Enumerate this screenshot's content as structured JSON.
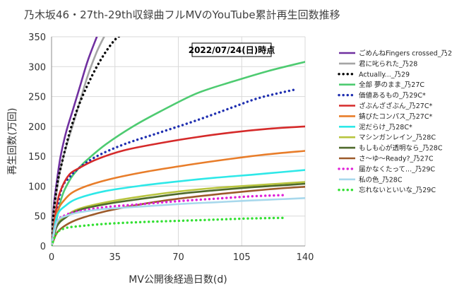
{
  "chart_data": {
    "type": "line",
    "title": "乃木坂46・27th-29th収録曲フルMVのYouTube累計再生回数推移",
    "annotation": "2022/07/24(日)時点",
    "xlabel": "MV公開後経過日数(d)",
    "ylabel": "再生回数(万回)",
    "xlim": [
      0,
      140
    ],
    "ylim": [
      0,
      350
    ],
    "xticks": [
      0,
      35,
      70,
      105,
      140
    ],
    "yticks": [
      0,
      50,
      100,
      150,
      200,
      250,
      300,
      350
    ],
    "grid": true,
    "legend_position": "right",
    "series": [
      {
        "name": "ごめんねFingers crossed_乃27",
        "color": "#7030a0",
        "dash": "solid",
        "points": [
          [
            0,
            0
          ],
          [
            1,
            60
          ],
          [
            3,
            110
          ],
          [
            5,
            150
          ],
          [
            8,
            190
          ],
          [
            12,
            230
          ],
          [
            16,
            270
          ],
          [
            20,
            310
          ],
          [
            25,
            350
          ]
        ]
      },
      {
        "name": "君に叱られた_乃28",
        "color": "#a5a5a5",
        "dash": "solid",
        "points": [
          [
            0,
            0
          ],
          [
            1,
            50
          ],
          [
            3,
            95
          ],
          [
            5,
            130
          ],
          [
            8,
            165
          ],
          [
            12,
            205
          ],
          [
            16,
            245
          ],
          [
            20,
            285
          ],
          [
            25,
            325
          ],
          [
            29,
            350
          ]
        ]
      },
      {
        "name": "Actually..._乃29",
        "color": "#000000",
        "dash": "dot",
        "points": [
          [
            0,
            0
          ],
          [
            1,
            50
          ],
          [
            3,
            100
          ],
          [
            5,
            130
          ],
          [
            10,
            190
          ],
          [
            15,
            235
          ],
          [
            20,
            270
          ],
          [
            25,
            300
          ],
          [
            30,
            325
          ],
          [
            35,
            345
          ],
          [
            38,
            352
          ]
        ]
      },
      {
        "name": "全部 夢のまま_乃27C",
        "color": "#4ecb71",
        "dash": "solid",
        "points": [
          [
            0,
            0
          ],
          [
            5,
            75
          ],
          [
            10,
            110
          ],
          [
            15,
            130
          ],
          [
            20,
            145
          ],
          [
            30,
            170
          ],
          [
            45,
            200
          ],
          [
            60,
            225
          ],
          [
            80,
            255
          ],
          [
            100,
            275
          ],
          [
            120,
            293
          ],
          [
            140,
            308
          ]
        ]
      },
      {
        "name": "価値あるもの_乃29C*",
        "color": "#1f2fb0",
        "dash": "dot",
        "points": [
          [
            0,
            0
          ],
          [
            5,
            90
          ],
          [
            10,
            115
          ],
          [
            15,
            130
          ],
          [
            25,
            150
          ],
          [
            40,
            170
          ],
          [
            60,
            190
          ],
          [
            80,
            210
          ],
          [
            100,
            232
          ],
          [
            115,
            248
          ],
          [
            135,
            262
          ]
        ]
      },
      {
        "name": "ざぶんざざぶん_乃27C*",
        "color": "#d52a2a",
        "dash": "solid",
        "points": [
          [
            0,
            0
          ],
          [
            3,
            70
          ],
          [
            6,
            100
          ],
          [
            10,
            120
          ],
          [
            15,
            130
          ],
          [
            25,
            145
          ],
          [
            40,
            160
          ],
          [
            60,
            172
          ],
          [
            80,
            182
          ],
          [
            100,
            190
          ],
          [
            120,
            196
          ],
          [
            140,
            200
          ]
        ]
      },
      {
        "name": "錆びたコンパス_乃27C*",
        "color": "#e87d2a",
        "dash": "solid",
        "points": [
          [
            0,
            0
          ],
          [
            3,
            55
          ],
          [
            8,
            80
          ],
          [
            15,
            95
          ],
          [
            30,
            110
          ],
          [
            50,
            123
          ],
          [
            70,
            133
          ],
          [
            90,
            142
          ],
          [
            110,
            150
          ],
          [
            125,
            155
          ],
          [
            140,
            159
          ]
        ]
      },
      {
        "name": "泥だらけ_乃28C*",
        "color": "#2ee8e8",
        "dash": "solid",
        "points": [
          [
            0,
            0
          ],
          [
            3,
            50
          ],
          [
            8,
            68
          ],
          [
            15,
            80
          ],
          [
            30,
            92
          ],
          [
            50,
            101
          ],
          [
            70,
            108
          ],
          [
            90,
            114
          ],
          [
            110,
            119
          ],
          [
            125,
            123
          ],
          [
            140,
            127
          ]
        ]
      },
      {
        "name": "マシンガンレイン_乃28C",
        "color": "#b8c43e",
        "dash": "solid",
        "points": [
          [
            0,
            0
          ],
          [
            3,
            35
          ],
          [
            8,
            50
          ],
          [
            15,
            62
          ],
          [
            30,
            73
          ],
          [
            50,
            83
          ],
          [
            70,
            91
          ],
          [
            90,
            97
          ],
          [
            110,
            101
          ],
          [
            125,
            104
          ],
          [
            140,
            107
          ]
        ]
      },
      {
        "name": "もしも心が透明なら_乃28C",
        "color": "#4e6a2c",
        "dash": "solid",
        "points": [
          [
            0,
            0
          ],
          [
            3,
            33
          ],
          [
            8,
            48
          ],
          [
            15,
            60
          ],
          [
            30,
            70
          ],
          [
            50,
            79
          ],
          [
            70,
            87
          ],
          [
            90,
            93
          ],
          [
            110,
            98
          ],
          [
            125,
            101
          ],
          [
            140,
            104
          ]
        ]
      },
      {
        "name": "さ～ゆ～Ready?_乃27C",
        "color": "#9c5a2a",
        "dash": "solid",
        "points": [
          [
            0,
            0
          ],
          [
            3,
            22
          ],
          [
            8,
            35
          ],
          [
            15,
            45
          ],
          [
            30,
            58
          ],
          [
            50,
            70
          ],
          [
            70,
            79
          ],
          [
            90,
            86
          ],
          [
            110,
            92
          ],
          [
            125,
            96
          ],
          [
            140,
            99
          ]
        ]
      },
      {
        "name": "届かなくたって..._乃29C",
        "color": "#e020d8",
        "dash": "dot",
        "points": [
          [
            0,
            0
          ],
          [
            3,
            40
          ],
          [
            8,
            52
          ],
          [
            15,
            58
          ],
          [
            30,
            65
          ],
          [
            50,
            70
          ],
          [
            70,
            75
          ],
          [
            90,
            79
          ],
          [
            110,
            83
          ],
          [
            128,
            85
          ]
        ]
      },
      {
        "name": "私の色_乃28C",
        "color": "#a8d8ec",
        "dash": "solid",
        "points": [
          [
            0,
            0
          ],
          [
            3,
            40
          ],
          [
            8,
            50
          ],
          [
            15,
            56
          ],
          [
            30,
            62
          ],
          [
            50,
            66
          ],
          [
            70,
            70
          ],
          [
            90,
            73
          ],
          [
            110,
            76
          ],
          [
            125,
            78
          ],
          [
            140,
            80
          ]
        ]
      },
      {
        "name": "忘れないといいな_乃29C",
        "color": "#33e033",
        "dash": "dot",
        "points": [
          [
            0,
            0
          ],
          [
            3,
            22
          ],
          [
            8,
            30
          ],
          [
            15,
            33
          ],
          [
            30,
            37
          ],
          [
            50,
            40
          ],
          [
            70,
            42
          ],
          [
            90,
            44
          ],
          [
            110,
            46
          ],
          [
            128,
            47
          ]
        ]
      }
    ]
  }
}
